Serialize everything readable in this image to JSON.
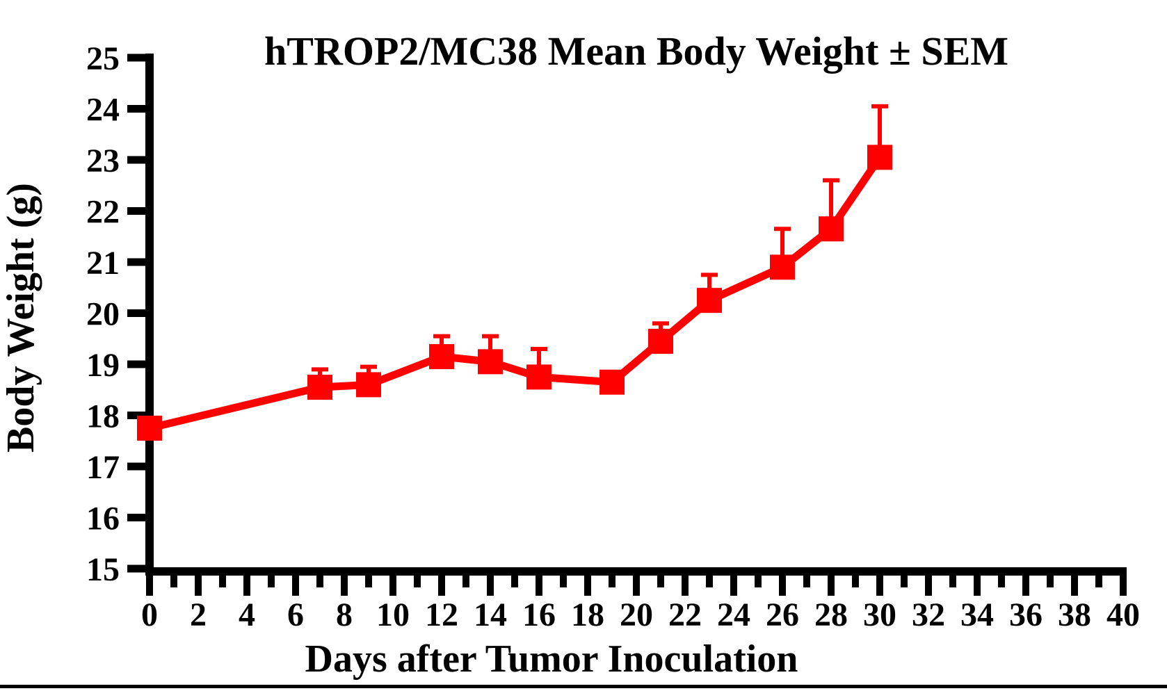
{
  "figure": {
    "title": "hTROP2/MC38 Mean Body Weight ± SEM",
    "colors": {
      "series": "#ff0000",
      "axis": "#000000",
      "background": "#ffffff",
      "bottom_rule": "#000000"
    }
  },
  "chart_data": {
    "type": "line",
    "title": "hTROP2/MC38 Mean Body Weight ± SEM",
    "xlabel": "Days after Tumor Inoculation",
    "ylabel": "Body Weight (g)",
    "xlim": [
      0,
      40
    ],
    "ylim": [
      15,
      25
    ],
    "grid": false,
    "legend": "none",
    "x_axis": {
      "major_tick_values": [
        0,
        2,
        4,
        6,
        8,
        10,
        12,
        14,
        16,
        18,
        20,
        22,
        24,
        26,
        28,
        30,
        32,
        34,
        36,
        38,
        40
      ],
      "minor_tick_step": 1,
      "tick_labels": [
        "0",
        "2",
        "4",
        "6",
        "8",
        "10",
        "12",
        "14",
        "16",
        "18",
        "20",
        "22",
        "24",
        "26",
        "28",
        "30",
        "32",
        "34",
        "36",
        "38",
        "40"
      ]
    },
    "y_axis": {
      "major_tick_values": [
        15,
        16,
        17,
        18,
        19,
        20,
        21,
        22,
        23,
        24,
        25
      ],
      "tick_labels": [
        "15",
        "16",
        "17",
        "18",
        "19",
        "20",
        "21",
        "22",
        "23",
        "24",
        "25"
      ]
    },
    "error_bars": "upper SEM only, capped",
    "series": [
      {
        "name": "hTROP2/MC38 Mean Body Weight",
        "color": "#ff0000",
        "marker": "square",
        "x": [
          0,
          7,
          9,
          12,
          14,
          16,
          19,
          21,
          23,
          26,
          28,
          30
        ],
        "y": [
          17.75,
          18.55,
          18.6,
          19.15,
          19.05,
          18.75,
          18.65,
          19.45,
          20.25,
          20.9,
          21.65,
          23.05
        ],
        "sem": [
          0.1,
          0.35,
          0.35,
          0.4,
          0.5,
          0.55,
          0.1,
          0.35,
          0.5,
          0.75,
          0.95,
          1.0
        ]
      }
    ]
  }
}
